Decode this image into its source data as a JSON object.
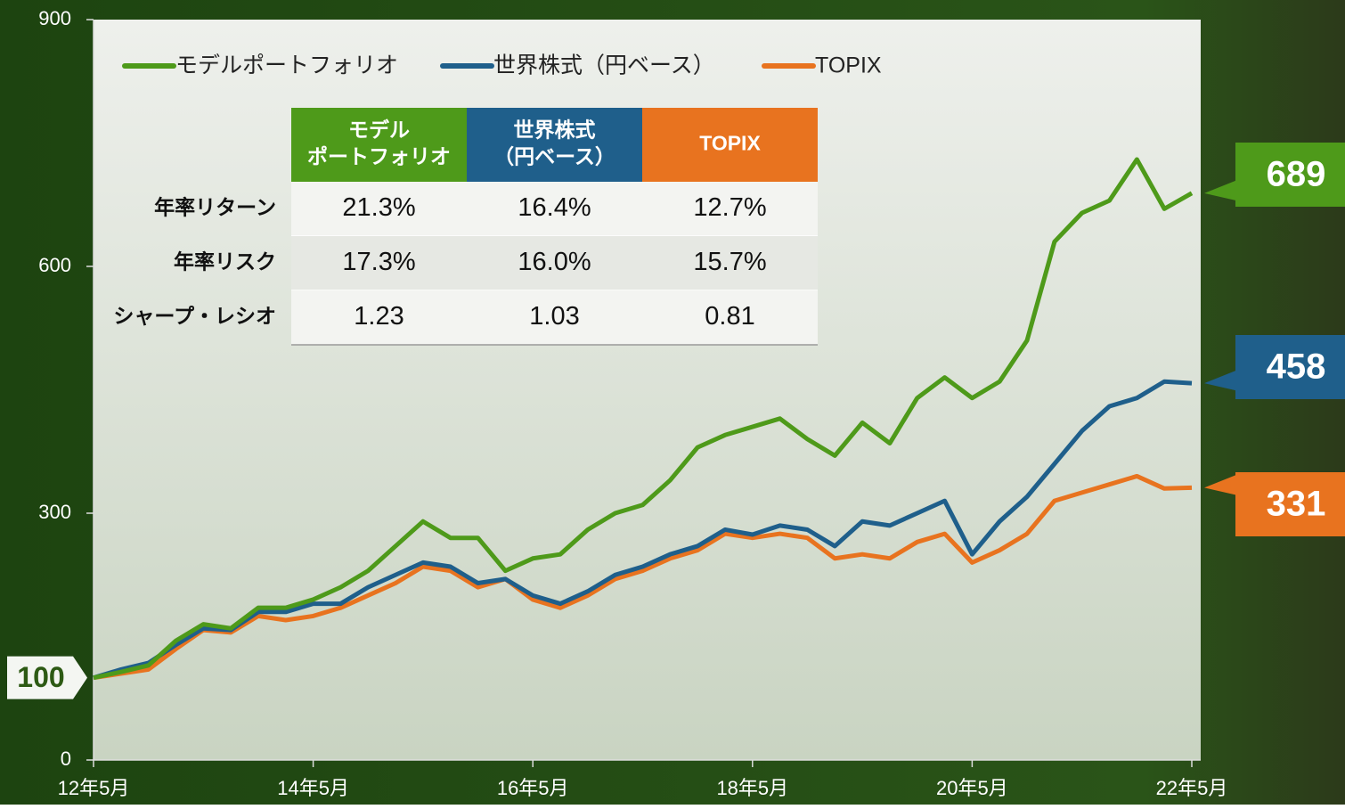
{
  "chart_data": {
    "type": "line",
    "categories": [
      "12年5月",
      null,
      null,
      null,
      null,
      null,
      null,
      null,
      "14年5月",
      null,
      null,
      null,
      null,
      null,
      null,
      null,
      "16年5月",
      null,
      null,
      null,
      null,
      null,
      null,
      null,
      "18年5月",
      null,
      null,
      null,
      null,
      null,
      null,
      null,
      "20年5月",
      null,
      null,
      null,
      null,
      null,
      null,
      null,
      "22年5月"
    ],
    "series": [
      {
        "name": "モデルポートフォリオ",
        "color": "#4e9a1a",
        "end_label": "689",
        "values": [
          100,
          107,
          115,
          145,
          165,
          160,
          185,
          185,
          195,
          210,
          230,
          260,
          290,
          270,
          270,
          230,
          245,
          250,
          280,
          300,
          310,
          340,
          380,
          395,
          405,
          415,
          390,
          370,
          410,
          385,
          440,
          465,
          440,
          460,
          510,
          630,
          665,
          680,
          730,
          670,
          689
        ]
      },
      {
        "name": "世界株式（円ベース）",
        "color": "#1f5f8b",
        "end_label": "458",
        "values": [
          100,
          110,
          118,
          140,
          160,
          158,
          180,
          180,
          190,
          190,
          210,
          225,
          240,
          235,
          215,
          220,
          200,
          190,
          205,
          225,
          235,
          250,
          260,
          280,
          274,
          285,
          280,
          260,
          290,
          285,
          300,
          315,
          250,
          290,
          320,
          360,
          400,
          430,
          440,
          460,
          458
        ]
      },
      {
        "name": "TOPIX",
        "color": "#e8731f",
        "end_label": "331",
        "values": [
          100,
          105,
          110,
          135,
          158,
          155,
          175,
          170,
          175,
          185,
          200,
          215,
          235,
          230,
          210,
          220,
          195,
          185,
          200,
          220,
          230,
          245,
          255,
          275,
          270,
          275,
          270,
          245,
          250,
          245,
          265,
          275,
          240,
          255,
          275,
          315,
          325,
          335,
          345,
          330,
          331
        ]
      }
    ],
    "start_label": "100",
    "ylim": [
      0,
      900
    ],
    "yticks": [
      0,
      300,
      600,
      900
    ]
  },
  "table": {
    "columns": [
      [
        "モデル",
        "ポートフォリオ"
      ],
      [
        "世界株式",
        "（円ベース）"
      ],
      [
        "TOPIX"
      ]
    ],
    "rows": [
      {
        "label": "年率リターン",
        "values": [
          "21.3%",
          "16.4%",
          "12.7%"
        ]
      },
      {
        "label": "年率リスク",
        "values": [
          "17.3%",
          "16.0%",
          "15.7%"
        ]
      },
      {
        "label": "シャープ・レシオ",
        "values": [
          "1.23",
          "1.03",
          "0.81"
        ]
      }
    ]
  }
}
